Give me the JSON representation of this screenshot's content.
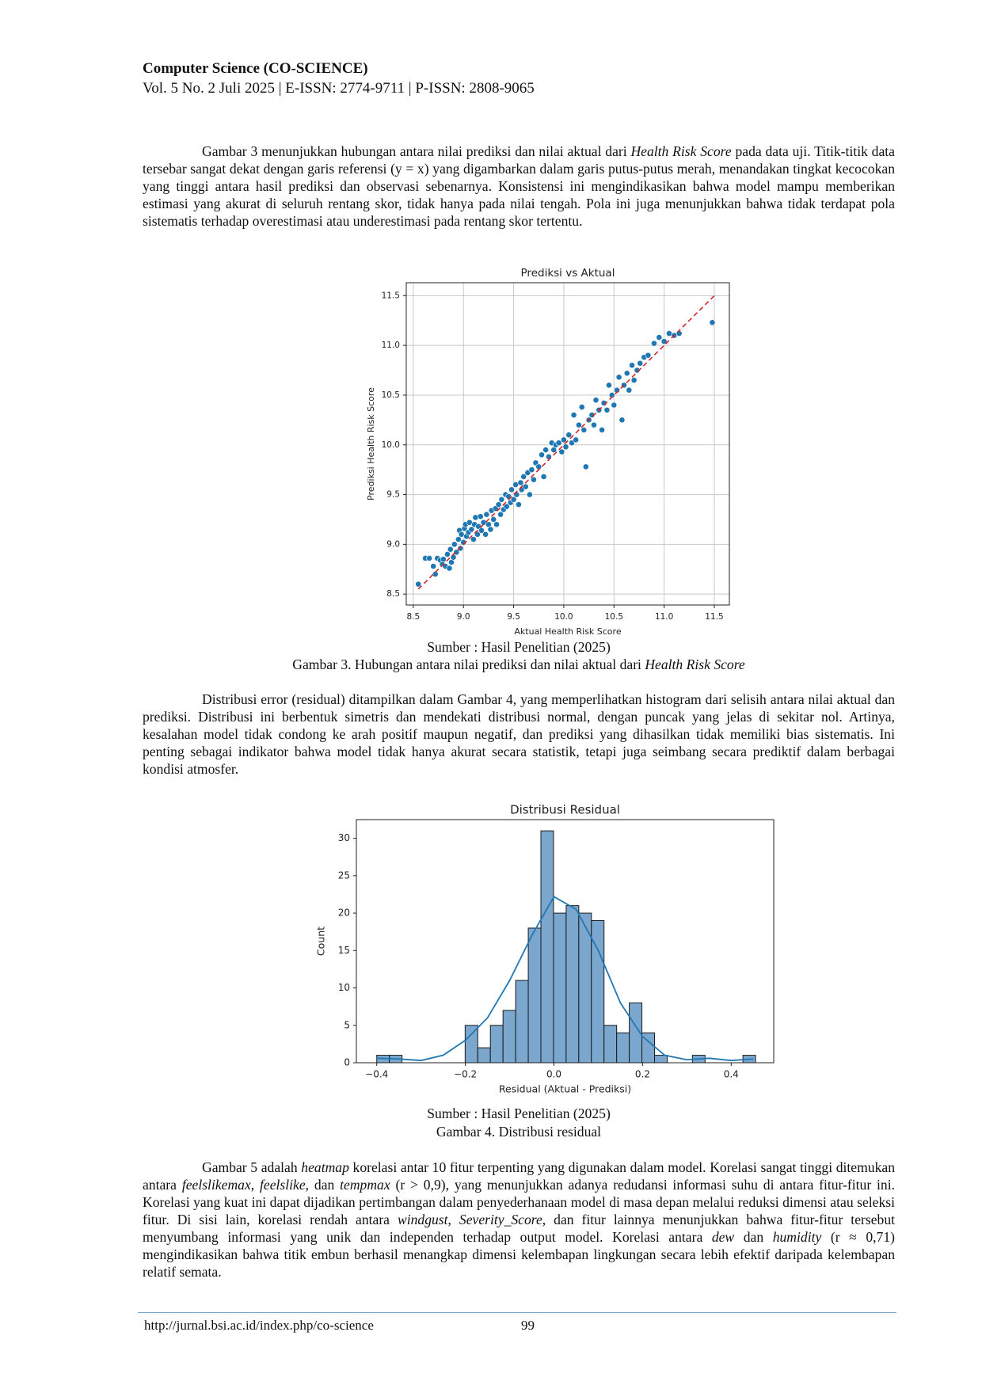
{
  "header": {
    "journal": "Computer Science (CO-SCIENCE)",
    "issue": "Vol. 5 No. 2 Juli 2025 | E-ISSN: 2774-9711 | P-ISSN: 2808-9065"
  },
  "paragraphs": [
    [
      {
        "text": "Gambar 3 menunjukkan hubungan antara nilai prediksi dan nilai aktual dari "
      },
      {
        "text": "Health Risk Score",
        "italic": true
      },
      {
        "text": " pada data uji. Titik-titik data tersebar sangat dekat dengan garis referensi (y = x) yang digambarkan dalam garis putus-putus merah, menandakan tingkat kecocokan yang tinggi antara hasil prediksi dan observasi sebenarnya. Konsistensi ini mengindikasikan bahwa model mampu memberikan estimasi yang akurat di seluruh rentang skor, tidak hanya pada nilai tengah. Pola ini juga menunjukkan bahwa tidak terdapat pola sistematis terhadap overestimasi atau underestimasi pada rentang skor tertentu."
      }
    ],
    [
      {
        "text": "Distribusi error (residual) ditampilkan dalam Gambar 4, yang memperlihatkan histogram dari selisih antara nilai aktual dan prediksi. Distribusi ini berbentuk simetris dan mendekati distribusi normal, dengan puncak yang jelas di sekitar nol. Artinya, kesalahan model tidak condong ke arah positif maupun negatif, dan prediksi yang dihasilkan tidak memiliki bias sistematis. Ini penting sebagai indikator bahwa model tidak hanya akurat secara statistik, tetapi juga seimbang secara prediktif dalam berbagai kondisi atmosfer."
      }
    ],
    [
      {
        "text": "Gambar 5 adalah "
      },
      {
        "text": "heatmap",
        "italic": true
      },
      {
        "text": " korelasi antar 10 fitur terpenting yang digunakan dalam model. Korelasi sangat tinggi ditemukan antara "
      },
      {
        "text": "feelslikemax",
        "italic": true
      },
      {
        "text": ", "
      },
      {
        "text": "feelslike",
        "italic": true
      },
      {
        "text": ", dan "
      },
      {
        "text": "tempmax",
        "italic": true
      },
      {
        "text": " (r > 0,9), yang menunjukkan adanya redudansi informasi suhu di antara fitur-fitur ini. Korelasi yang kuat ini dapat dijadikan pertimbangan dalam penyederhanaan model di masa depan melalui reduksi dimensi atau seleksi fitur. Di sisi lain, korelasi rendah antara "
      },
      {
        "text": "windgust",
        "italic": true
      },
      {
        "text": ", "
      },
      {
        "text": "Severity_Score",
        "italic": true
      },
      {
        "text": ", dan fitur lainnya menunjukkan bahwa fitur-fitur tersebut menyumbang informasi yang unik dan independen terhadap output model. Korelasi antara "
      },
      {
        "text": "dew",
        "italic": true
      },
      {
        "text": " dan "
      },
      {
        "text": "humidity",
        "italic": true
      },
      {
        "text": " (r ≈ 0,71) mengindikasikan bahwa titik embun berhasil menangkap dimensi kelembapan lingkungan secara lebih efektif daripada kelembapan relatif semata."
      }
    ]
  ],
  "figures": [
    {
      "source": "Sumber : Hasil Penelitian (2025)",
      "caption": [
        {
          "text": "Gambar 3. Hubungan antara nilai prediksi dan nilai aktual dari "
        },
        {
          "text": "Health Risk Score",
          "italic": true
        }
      ]
    },
    {
      "source": "Sumber : Hasil Penelitian (2025)",
      "caption": [
        {
          "text": "Gambar 4. Distribusi residual"
        }
      ]
    }
  ],
  "chart_data": [
    {
      "type": "scatter",
      "title": "Prediksi vs Aktual",
      "x_label": "Aktual Health Risk Score",
      "y_label": "Prediksi Health Risk Score",
      "color": "#1f77b4",
      "grid": true,
      "x": [
        8.55,
        8.62,
        8.66,
        8.7,
        8.72,
        8.74,
        8.77,
        8.79,
        8.8,
        8.82,
        8.84,
        8.86,
        8.87,
        8.88,
        8.9,
        8.91,
        8.93,
        8.95,
        8.96,
        8.97,
        8.98,
        9.0,
        9.01,
        9.02,
        9.03,
        9.05,
        9.06,
        9.08,
        9.1,
        9.11,
        9.12,
        9.14,
        9.15,
        9.17,
        9.18,
        9.2,
        9.22,
        9.23,
        9.25,
        9.27,
        9.28,
        9.3,
        9.32,
        9.33,
        9.35,
        9.37,
        9.38,
        9.4,
        9.42,
        9.43,
        9.45,
        9.47,
        9.48,
        9.5,
        9.52,
        9.53,
        9.55,
        9.57,
        9.58,
        9.6,
        9.62,
        9.64,
        9.66,
        9.68,
        9.7,
        9.72,
        9.75,
        9.78,
        9.8,
        9.82,
        9.85,
        9.88,
        9.9,
        9.92,
        9.95,
        9.98,
        10.0,
        10.02,
        10.05,
        10.08,
        10.1,
        10.12,
        10.15,
        10.18,
        10.2,
        10.22,
        10.25,
        10.28,
        10.3,
        10.32,
        10.35,
        10.38,
        10.4,
        10.43,
        10.45,
        10.48,
        10.5,
        10.53,
        10.55,
        10.58,
        10.6,
        10.63,
        10.65,
        10.68,
        10.7,
        10.73,
        10.76,
        10.8,
        10.84,
        10.9,
        10.95,
        11.0,
        11.05,
        11.1,
        11.15,
        11.48
      ],
      "y": [
        8.6,
        8.86,
        8.86,
        8.78,
        8.7,
        8.86,
        8.84,
        8.8,
        8.85,
        8.78,
        8.9,
        8.76,
        8.95,
        8.82,
        8.87,
        9.0,
        8.92,
        9.05,
        9.14,
        8.96,
        9.1,
        9.02,
        9.16,
        9.2,
        9.08,
        9.12,
        9.22,
        9.15,
        9.05,
        9.2,
        9.27,
        9.1,
        9.18,
        9.28,
        9.14,
        9.22,
        9.1,
        9.3,
        9.2,
        9.15,
        9.34,
        9.25,
        9.36,
        9.2,
        9.4,
        9.3,
        9.45,
        9.35,
        9.5,
        9.38,
        9.48,
        9.42,
        9.55,
        9.45,
        9.6,
        9.5,
        9.4,
        9.62,
        9.55,
        9.68,
        9.58,
        9.72,
        9.5,
        9.75,
        9.65,
        9.82,
        9.78,
        9.9,
        9.68,
        9.95,
        9.88,
        10.02,
        9.95,
        10.0,
        10.02,
        9.93,
        10.05,
        9.98,
        10.1,
        10.02,
        10.3,
        10.05,
        10.2,
        10.38,
        10.15,
        9.78,
        10.25,
        10.3,
        10.2,
        10.45,
        10.35,
        10.15,
        10.42,
        10.35,
        10.6,
        10.5,
        10.4,
        10.55,
        10.68,
        10.25,
        10.6,
        10.72,
        10.55,
        10.8,
        10.65,
        10.75,
        10.82,
        10.88,
        10.9,
        11.02,
        11.08,
        11.04,
        11.12,
        11.1,
        11.12,
        11.23
      ],
      "reference_line": {
        "x": [
          8.55,
          11.5
        ],
        "y": [
          8.55,
          11.5
        ],
        "color": "#d62728"
      },
      "xlim": [
        8.43,
        11.65
      ],
      "ylim": [
        8.39,
        11.63
      ],
      "xticks": [
        8.5,
        {
          "value": 9,
          "label": "9.0"
        },
        9.5,
        {
          "value": 10,
          "label": "10.0"
        },
        10.5,
        {
          "value": 11,
          "label": "11.0"
        },
        11.5
      ],
      "yticks": [
        8.5,
        {
          "value": 9,
          "label": "9.0"
        },
        9.5,
        {
          "value": 10,
          "label": "10.0"
        },
        10.5,
        {
          "value": 11,
          "label": "11.0"
        },
        11.5
      ]
    },
    {
      "type": "histogram",
      "title": "Distribusi Residual",
      "x_label": "Residual (Aktual - Prediksi)",
      "y_label": "Count",
      "color": "#7ba7cf",
      "edge_color": "#1a1a1a",
      "bins": [
        -0.4,
        -0.3715,
        -0.343,
        -0.3145,
        -0.286,
        -0.2575,
        -0.229,
        -0.2005,
        -0.172,
        -0.1435,
        -0.115,
        -0.0865,
        -0.058,
        -0.0295,
        -0.001,
        0.0275,
        0.056,
        0.0845,
        0.113,
        0.1415,
        0.17,
        0.1985,
        0.227,
        0.2555,
        0.284,
        0.3125,
        0.341,
        0.3695,
        0.398,
        0.4265,
        0.455
      ],
      "values": [
        1,
        1,
        0,
        0,
        0,
        0,
        0,
        5,
        2,
        5,
        7,
        11,
        18,
        31,
        20,
        21,
        20,
        19,
        5,
        4,
        8,
        4,
        1,
        0,
        0,
        1,
        0,
        0,
        0,
        1
      ],
      "kde": {
        "color": "#1f77b4",
        "x": [
          -0.4,
          -0.35,
          -0.3,
          -0.25,
          -0.2,
          -0.15,
          -0.1,
          -0.05,
          0.0,
          0.05,
          0.1,
          0.15,
          0.2,
          0.25,
          0.3,
          0.35,
          0.4,
          0.45
        ],
        "y": [
          0.6,
          0.5,
          0.3,
          1.0,
          3.0,
          6.0,
          11.0,
          17.0,
          22.2,
          20.5,
          15.0,
          8.0,
          3.5,
          1.0,
          0.4,
          0.6,
          0.3,
          0.5
        ]
      },
      "xlim": [
        -0.446,
        0.496
      ],
      "ylim": [
        0,
        32.5
      ],
      "xticks": [
        {
          "value": -0.4,
          "label": "−0.4"
        },
        {
          "value": -0.2,
          "label": "−0.2"
        },
        {
          "value": 0,
          "label": "0.0"
        },
        0.2,
        0.4
      ],
      "yticks": [
        0,
        5,
        10,
        15,
        20,
        25,
        30
      ]
    }
  ],
  "footer": {
    "url": "http://jurnal.bsi.ac.id/index.php/co-science",
    "page": 99
  }
}
